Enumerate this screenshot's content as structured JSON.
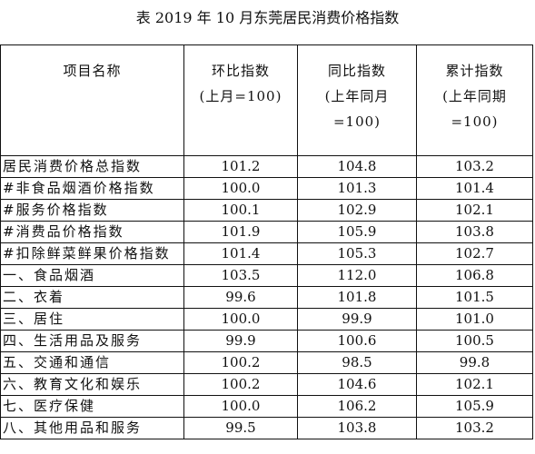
{
  "caption": "表 2019 年 10 月东莞居民消费价格指数",
  "header": {
    "item_name": "项目名称",
    "mom": {
      "line1": "环比指数",
      "line2": "(上月=100)"
    },
    "yoy": {
      "line1": "同比指数",
      "line2": "(上年同月",
      "line3": "=100)"
    },
    "cumulative": {
      "line1": "累计指数",
      "line2": "(上年同期",
      "line3": "=100)"
    }
  },
  "rows": [
    {
      "name": "居民消费价格总指数",
      "mom": "101.2",
      "yoy": "104.8",
      "cum": "103.2"
    },
    {
      "name": "#非食品烟酒价格指数",
      "mom": "100.0",
      "yoy": "101.3",
      "cum": "101.4"
    },
    {
      "name": "#服务价格指数",
      "mom": "100.1",
      "yoy": "102.9",
      "cum": "102.1"
    },
    {
      "name": "#消费品价格指数",
      "mom": "101.9",
      "yoy": "105.9",
      "cum": "103.8"
    },
    {
      "name": "#扣除鲜菜鲜果价格指数",
      "mom": "101.4",
      "yoy": "105.3",
      "cum": "102.7"
    },
    {
      "name": "一、食品烟酒",
      "mom": "103.5",
      "yoy": "112.0",
      "cum": "106.8"
    },
    {
      "name": "二、衣着",
      "mom": "99.6",
      "yoy": "101.8",
      "cum": "101.5"
    },
    {
      "name": "三、居住",
      "mom": "100.0",
      "yoy": "99.9",
      "cum": "101.0"
    },
    {
      "name": "四、生活用品及服务",
      "mom": "99.9",
      "yoy": "100.6",
      "cum": "100.5"
    },
    {
      "name": "五、交通和通信",
      "mom": "100.2",
      "yoy": "98.5",
      "cum": "99.8"
    },
    {
      "name": "六、教育文化和娱乐",
      "mom": "100.2",
      "yoy": "104.6",
      "cum": "102.1"
    },
    {
      "name": "七、医疗保健",
      "mom": "100.0",
      "yoy": "106.2",
      "cum": "105.9"
    },
    {
      "name": "八、其他用品和服务",
      "mom": "99.5",
      "yoy": "103.8",
      "cum": "103.2"
    }
  ]
}
